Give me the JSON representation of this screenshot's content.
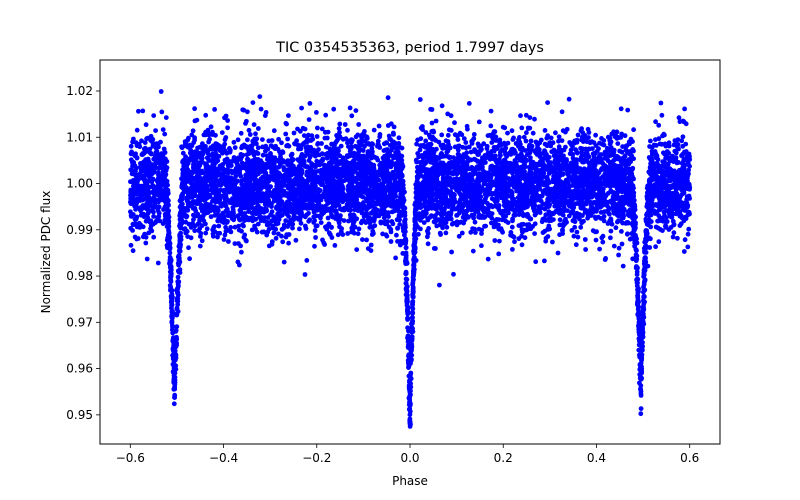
{
  "chart_data": {
    "type": "scatter",
    "title": "TIC 0354535363, period 1.7997 days",
    "xlabel": "Phase",
    "ylabel": "Normalized PDC flux",
    "xlim": [
      -0.665,
      0.665
    ],
    "ylim": [
      0.9437,
      1.0267
    ],
    "xticks": [
      -0.6,
      -0.4,
      -0.2,
      0.0,
      0.2,
      0.4,
      0.6
    ],
    "xtick_labels": [
      "−0.6",
      "−0.4",
      "−0.2",
      "0.0",
      "0.2",
      "0.4",
      "0.6"
    ],
    "yticks": [
      0.95,
      0.96,
      0.97,
      0.98,
      0.99,
      1.0,
      1.01,
      1.02
    ],
    "ytick_labels": [
      "0.95",
      "0.96",
      "0.97",
      "0.98",
      "0.99",
      "1.00",
      "1.01",
      "1.02"
    ],
    "grid": false,
    "legend": "none",
    "series": [
      {
        "name": "PDC flux",
        "color": "#0000ff",
        "marker": "circle",
        "phase_range": [
          -0.6,
          0.6
        ],
        "baseline_flux": 1.0,
        "scatter_sigma": 0.0055,
        "num_points": 7000,
        "eclipses": [
          {
            "center": -0.505,
            "depth": 0.045,
            "half_width": 0.02
          },
          {
            "center": 0.0,
            "depth": 0.05,
            "half_width": 0.017
          },
          {
            "center": 0.495,
            "depth": 0.045,
            "half_width": 0.02
          }
        ],
        "sample_points": [
          [
            -0.6,
            1.0
          ],
          [
            -0.55,
            1.005
          ],
          [
            -0.51,
            0.96
          ],
          [
            -0.505,
            0.952
          ],
          [
            -0.5,
            0.965
          ],
          [
            -0.4,
            1.0
          ],
          [
            -0.2,
            1.0
          ],
          [
            -0.01,
            0.96
          ],
          [
            0.0,
            0.946
          ],
          [
            0.01,
            0.962
          ],
          [
            0.2,
            1.0
          ],
          [
            0.4,
            1.0
          ],
          [
            0.49,
            0.96
          ],
          [
            0.495,
            0.95
          ],
          [
            0.5,
            0.965
          ],
          [
            0.6,
            1.0
          ]
        ]
      }
    ]
  }
}
